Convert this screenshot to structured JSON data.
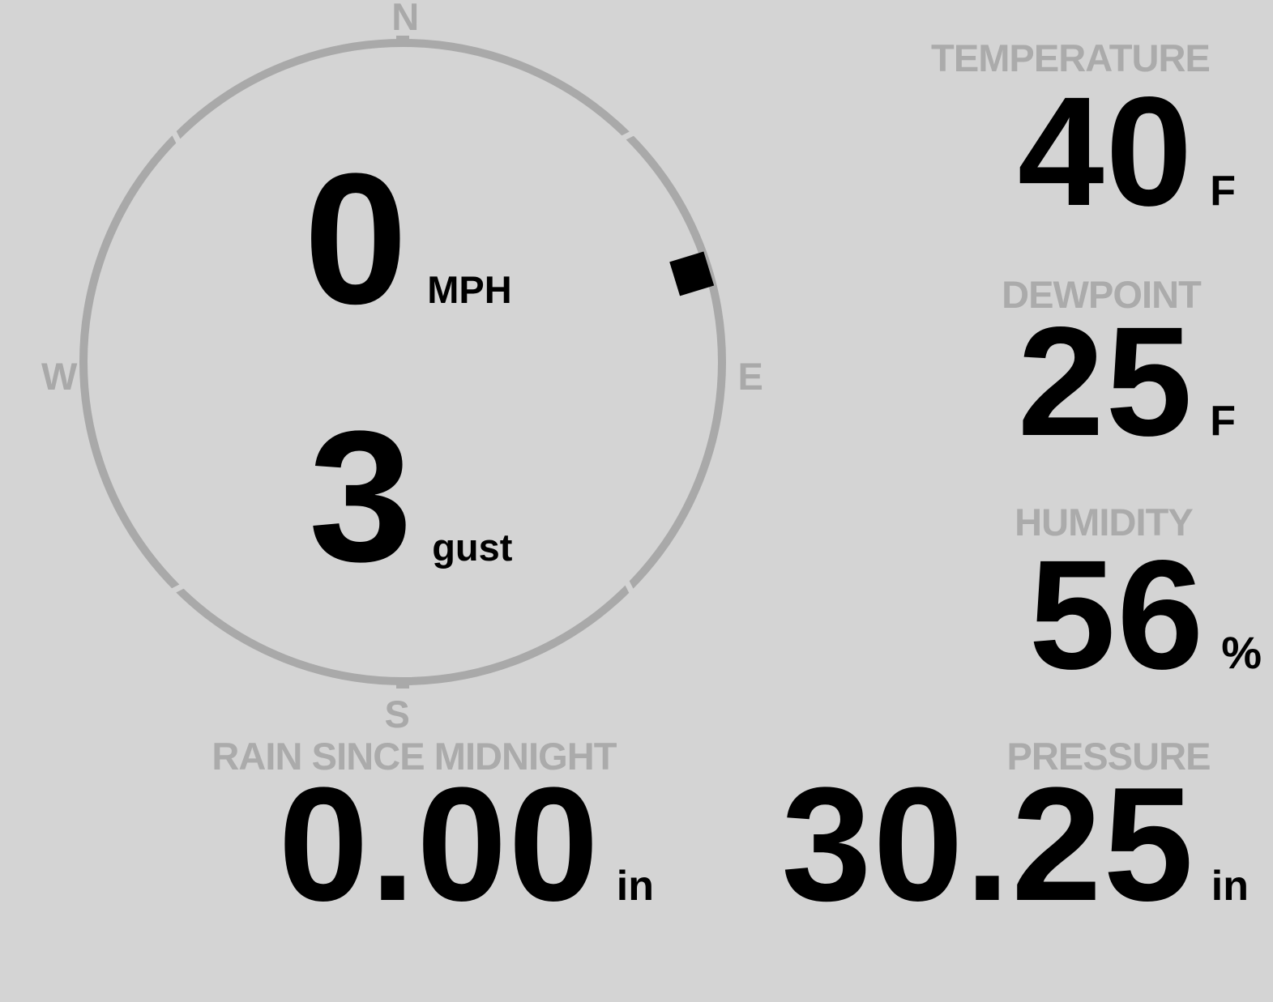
{
  "colors": {
    "background": "#d4d4d4",
    "muted_gray": "#ababab",
    "ring_gray": "#a9a9a9",
    "value_black": "#000000"
  },
  "wind": {
    "compass": {
      "north": "N",
      "east": "E",
      "south": "S",
      "west": "W",
      "direction_deg": 73
    },
    "speed": {
      "value": "0",
      "unit": "MPH"
    },
    "gust": {
      "value": "3",
      "unit": "gust"
    }
  },
  "stats": {
    "temperature": {
      "label": "TEMPERATURE",
      "value": "40",
      "unit": "F"
    },
    "dewpoint": {
      "label": "DEWPOINT",
      "value": "25",
      "unit": "F"
    },
    "humidity": {
      "label": "HUMIDITY",
      "value": "56",
      "unit": "%"
    },
    "rain": {
      "label": "RAIN SINCE MIDNIGHT",
      "value": "0.00",
      "unit": "in"
    },
    "pressure": {
      "label": "PRESSURE",
      "value": "30.25",
      "unit": "in"
    }
  }
}
